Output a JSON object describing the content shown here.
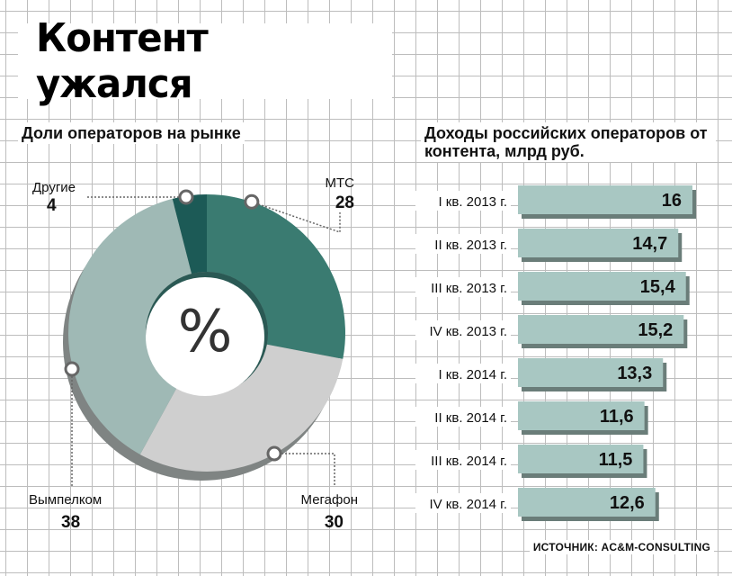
{
  "title": "Контент ужался",
  "source": "ИСТОЧНИК: AC&M-CONSULTING",
  "colors": {
    "mts": "#3a7b71",
    "megafon": "#cfcfcf",
    "vympelcom": "#9fb9b5",
    "other": "#1c5a56",
    "bar": "#a8c7c2",
    "bar_shadow": "#6a7d79"
  },
  "chart_data": [
    {
      "type": "pie",
      "title": "Доли операторов на рынке",
      "center_label": "%",
      "slices": [
        {
          "name": "МТС",
          "value": 28
        },
        {
          "name": "Мегафон",
          "value": 30
        },
        {
          "name": "Вымпелком",
          "value": 38
        },
        {
          "name": "Другие",
          "value": 4
        }
      ]
    },
    {
      "type": "bar",
      "orientation": "horizontal",
      "title": "Доходы российских операторов от контента, млрд руб.",
      "categories": [
        "I кв. 2013 г.",
        "II кв. 2013 г.",
        "III кв. 2013 г.",
        "IV кв. 2013 г.",
        "I кв. 2014 г.",
        "II кв. 2014 г.",
        "III кв. 2014 г.",
        "IV кв. 2014 г."
      ],
      "values": [
        16,
        14.7,
        15.4,
        15.2,
        13.3,
        11.6,
        11.5,
        12.6
      ],
      "value_labels": [
        "16",
        "14,7",
        "15,4",
        "15,2",
        "13,3",
        "11,6",
        "11,5",
        "12,6"
      ]
    }
  ]
}
